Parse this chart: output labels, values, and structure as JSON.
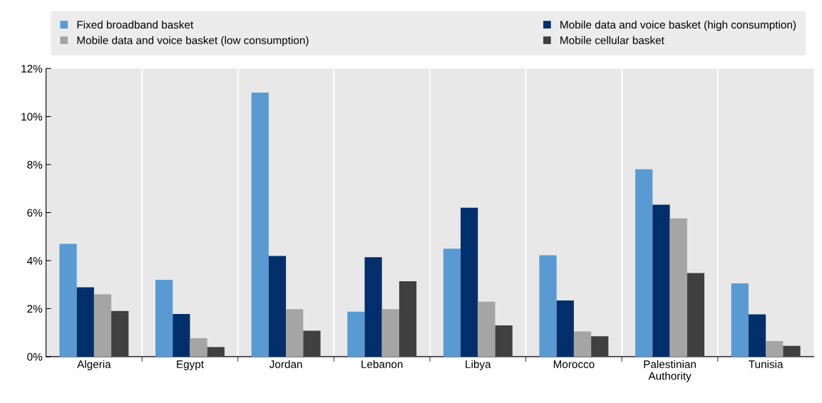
{
  "chart_data": {
    "type": "bar",
    "categories": [
      "Algeria",
      "Egypt",
      "Jordan",
      "Lebanon",
      "Libya",
      "Morocco",
      "Palestinian\nAuthority",
      "Tunisia"
    ],
    "series": [
      {
        "name": "Fixed broadband basket",
        "color": "#599ad3",
        "values": [
          4.7,
          3.2,
          11.0,
          1.87,
          4.5,
          4.22,
          7.8,
          3.05
        ]
      },
      {
        "name": "Mobile data and voice basket (high consumption)",
        "color": "#002f6c",
        "values": [
          2.89,
          1.78,
          4.19,
          4.14,
          6.2,
          2.34,
          6.33,
          1.76
        ]
      },
      {
        "name": "Mobile data and voice basket (low consumption)",
        "color": "#a5a5a5",
        "values": [
          2.6,
          0.77,
          1.98,
          1.98,
          2.29,
          1.05,
          5.76,
          0.65
        ]
      },
      {
        "name": "Mobile cellular basket",
        "color": "#404040",
        "values": [
          1.9,
          0.4,
          1.08,
          3.14,
          1.3,
          0.85,
          3.48,
          0.45
        ]
      }
    ],
    "ylim": [
      0,
      12
    ],
    "yticks": [
      {
        "value": 0,
        "label": "0%"
      },
      {
        "value": 2,
        "label": "2%"
      },
      {
        "value": 4,
        "label": "4%"
      },
      {
        "value": 6,
        "label": "6%"
      },
      {
        "value": 8,
        "label": "8%"
      },
      {
        "value": 10,
        "label": "10%"
      },
      {
        "value": 12,
        "label": "12%"
      }
    ],
    "grid": "x",
    "legend": "top"
  }
}
